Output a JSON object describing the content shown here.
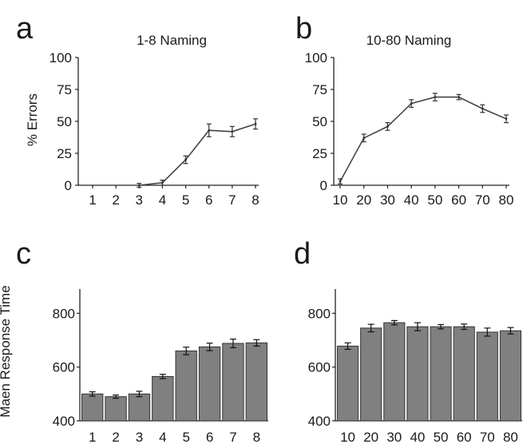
{
  "figure": {
    "ylabel_top": "% Errors",
    "ylabel_bottom": "Maen Response Time"
  },
  "chart_data": [
    {
      "id": "a",
      "panel_letter": "a",
      "type": "line",
      "title": "1-8 Naming",
      "x": [
        1,
        2,
        3,
        4,
        5,
        6,
        7,
        8
      ],
      "x_tick_labels": [
        "1",
        "2",
        "3",
        "4",
        "5",
        "6",
        "7",
        "8"
      ],
      "series": [
        {
          "values": [
            null,
            null,
            0,
            2,
            20,
            43,
            42,
            48
          ],
          "errors": [
            0,
            0,
            1.5,
            2,
            3,
            5,
            4,
            4
          ]
        }
      ],
      "ylim": [
        0,
        100
      ],
      "y_ticks": [
        0,
        25,
        50,
        75,
        100
      ],
      "ylabel": "% Errors",
      "xlabel": "",
      "line_color": "#444444"
    },
    {
      "id": "b",
      "panel_letter": "b",
      "type": "line",
      "title": "10-80 Naming",
      "x": [
        10,
        20,
        30,
        40,
        50,
        60,
        70,
        80
      ],
      "x_tick_labels": [
        "10",
        "20",
        "30",
        "40",
        "50",
        "60",
        "70",
        "80"
      ],
      "series": [
        {
          "values": [
            3,
            37,
            46,
            64,
            69,
            69,
            60,
            52
          ],
          "errors": [
            2,
            3,
            3,
            3,
            3,
            2,
            3,
            3
          ]
        }
      ],
      "ylim": [
        0,
        100
      ],
      "y_ticks": [
        0,
        25,
        50,
        75,
        100
      ],
      "ylabel": "",
      "xlabel": "",
      "line_color": "#444444"
    },
    {
      "id": "c",
      "panel_letter": "c",
      "type": "bar",
      "title": "",
      "categories": [
        "1",
        "2",
        "3",
        "4",
        "5",
        "6",
        "7",
        "8"
      ],
      "series": [
        {
          "values": [
            500,
            490,
            500,
            565,
            660,
            675,
            688,
            690
          ],
          "errors": [
            8,
            6,
            10,
            8,
            14,
            14,
            16,
            12
          ]
        }
      ],
      "ylim": [
        400,
        890
      ],
      "y_ticks": [
        400,
        600,
        800
      ],
      "ylabel": "Maen Response Time",
      "xlabel": "",
      "bar_color": "#808080"
    },
    {
      "id": "d",
      "panel_letter": "d",
      "type": "bar",
      "title": "",
      "categories": [
        "10",
        "20",
        "30",
        "40",
        "50",
        "60",
        "70",
        "80"
      ],
      "series": [
        {
          "values": [
            678,
            745,
            765,
            750,
            750,
            750,
            730,
            735
          ],
          "errors": [
            12,
            14,
            8,
            15,
            8,
            10,
            15,
            12
          ]
        }
      ],
      "ylim": [
        400,
        890
      ],
      "y_ticks": [
        400,
        600,
        800
      ],
      "ylabel": "",
      "xlabel": "",
      "bar_color": "#808080"
    }
  ]
}
